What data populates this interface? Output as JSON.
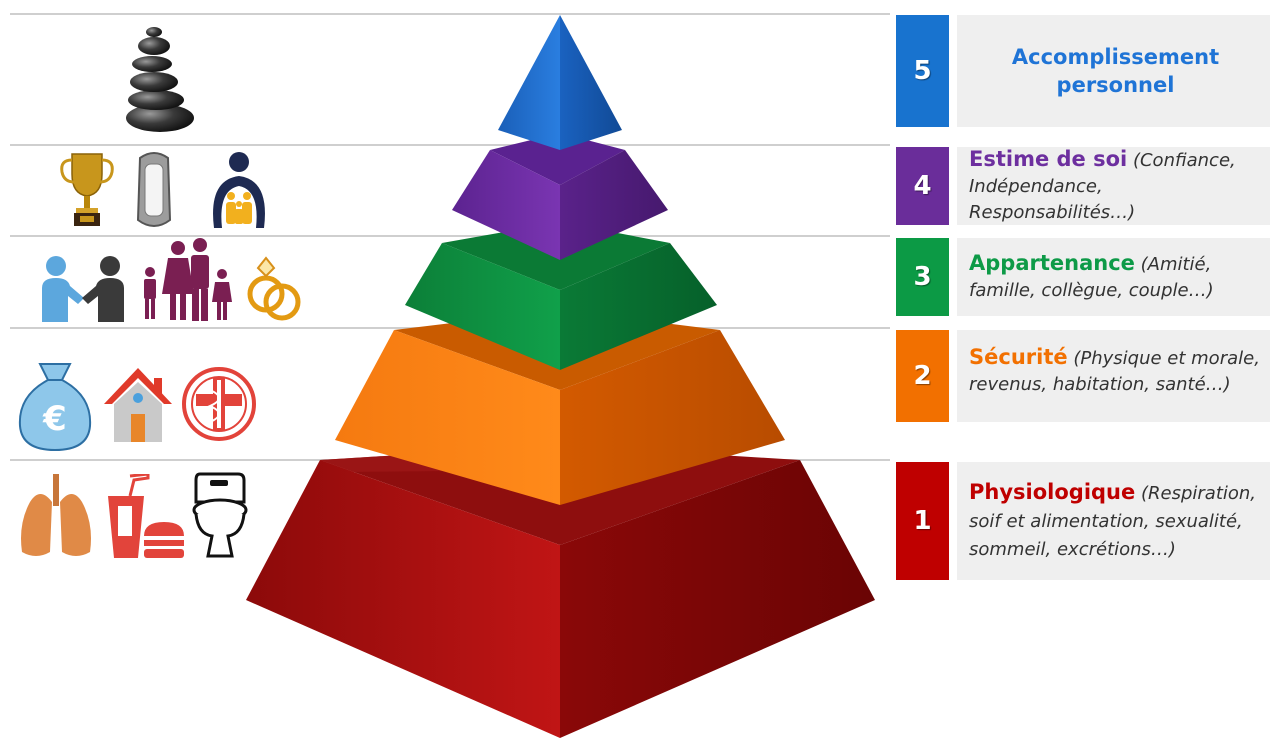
{
  "levels": [
    {
      "number": "5",
      "title": "Accomplissement",
      "title2": "personnel",
      "description": "",
      "color": "#1f74d6",
      "box_color": "#1873cf"
    },
    {
      "number": "4",
      "title": "Estime de soi",
      "description": "(Confiance, Indépendance, Responsabilités…)",
      "color": "#6d2f9f",
      "box_color": "#6a2d9a",
      "icons": [
        "trophy-icon",
        "mirror-icon",
        "family-circle-icon"
      ]
    },
    {
      "number": "3",
      "title": "Appartenance",
      "description": "(Amitié, famille, collègue, couple…)",
      "color": "#0d9a47",
      "box_color": "#0c9a45",
      "icons": [
        "handshake-icon",
        "family-icon",
        "rings-icon"
      ]
    },
    {
      "number": "2",
      "title": "Sécurité",
      "description": "(Physique et morale, revenus, habitation, santé…)",
      "color": "#f27000",
      "box_color": "#f27000",
      "icons": [
        "money-bag-icon",
        "house-icon",
        "medical-icon"
      ]
    },
    {
      "number": "1",
      "title": "Physiologique",
      "description": "(Respiration, soif et alimentation, sexualité, sommeil, excrétions…)",
      "color": "#bf0000",
      "box_color": "#bf0000",
      "icons": [
        "lungs-icon",
        "food-drink-icon",
        "toilet-icon"
      ]
    }
  ],
  "top_icon": "stones-icon",
  "money_symbol": "€",
  "pyramid_colors": {
    "blue": "#1b68c8",
    "purple": "#6b2aa0",
    "green": "#0c8a3e",
    "orange": "#ee6a00",
    "red": "#b40c0c"
  }
}
